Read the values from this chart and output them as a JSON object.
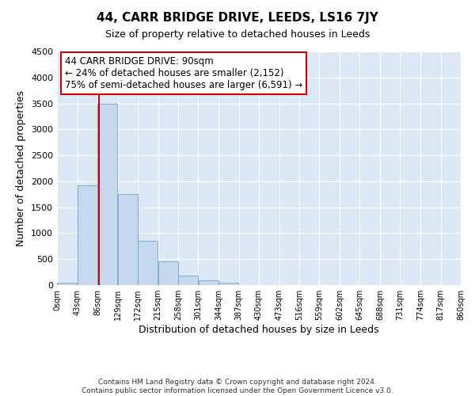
{
  "title": "44, CARR BRIDGE DRIVE, LEEDS, LS16 7JY",
  "subtitle": "Size of property relative to detached houses in Leeds",
  "xlabel": "Distribution of detached houses by size in Leeds",
  "ylabel": "Number of detached properties",
  "bar_color": "#c5d8ed",
  "bar_edge_color": "#7aaed4",
  "background_color": "#dce8f5",
  "grid_color": "#ffffff",
  "bin_edges": [
    0,
    43,
    86,
    129,
    172,
    215,
    258,
    301,
    344,
    387,
    430,
    473,
    516,
    559,
    602,
    645,
    688,
    731,
    774,
    817,
    860
  ],
  "bin_labels": [
    "0sqm",
    "43sqm",
    "86sqm",
    "129sqm",
    "172sqm",
    "215sqm",
    "258sqm",
    "301sqm",
    "344sqm",
    "387sqm",
    "430sqm",
    "473sqm",
    "516sqm",
    "559sqm",
    "602sqm",
    "645sqm",
    "688sqm",
    "731sqm",
    "774sqm",
    "817sqm",
    "860sqm"
  ],
  "bar_heights": [
    40,
    1920,
    3500,
    1760,
    860,
    460,
    185,
    90,
    40,
    0,
    0,
    0,
    0,
    0,
    0,
    0,
    0,
    0,
    0,
    0
  ],
  "ylim": [
    0,
    4500
  ],
  "yticks": [
    0,
    500,
    1000,
    1500,
    2000,
    2500,
    3000,
    3500,
    4000,
    4500
  ],
  "property_size": 90,
  "property_line_color": "#cc0000",
  "annotation_title": "44 CARR BRIDGE DRIVE: 90sqm",
  "annotation_line1": "← 24% of detached houses are smaller (2,152)",
  "annotation_line2": "75% of semi-detached houses are larger (6,591) →",
  "annotation_box_facecolor": "#ffffff",
  "annotation_box_edgecolor": "#cc0000",
  "footer_line1": "Contains HM Land Registry data © Crown copyright and database right 2024.",
  "footer_line2": "Contains public sector information licensed under the Open Government Licence v3.0."
}
